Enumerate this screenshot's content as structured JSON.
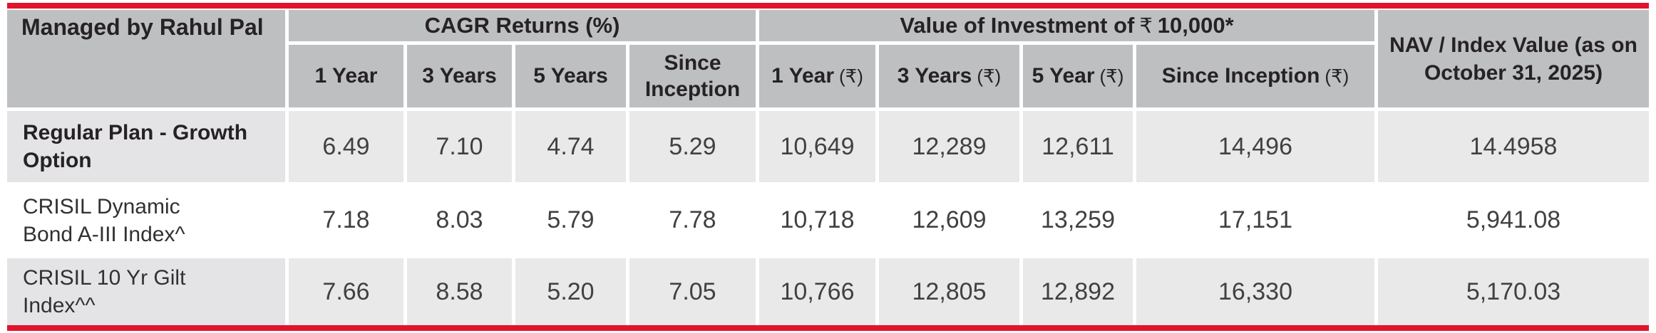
{
  "table": {
    "managed_by": "Managed by Rahul Pal",
    "groups": {
      "cagr": "CAGR Returns (%)",
      "value_pre": "Value of Investment of",
      "value_sym": "₹",
      "value_post": "10,000*",
      "nav": "NAV / Index Value (as on\nOctober 31, 2025)"
    },
    "subheaders": [
      {
        "label": "1 Year",
        "suffix": ""
      },
      {
        "label": "3 Years",
        "suffix": ""
      },
      {
        "label": "5 Years",
        "suffix": ""
      },
      {
        "label": "Since\nInception",
        "suffix": ""
      },
      {
        "label": "1 Year",
        "suffix": "(₹)"
      },
      {
        "label": "3 Years",
        "suffix": "(₹)"
      },
      {
        "label": "5 Year",
        "suffix": "(₹)"
      },
      {
        "label": "Since Inception",
        "suffix": "(₹)"
      }
    ],
    "rows": [
      {
        "label": "Regular Plan - Growth\nOption",
        "values": [
          "6.49",
          "7.10",
          "4.74",
          "5.29",
          "10,649",
          "12,289",
          "12,611",
          "14,496",
          "14.4958"
        ]
      },
      {
        "label": "CRISIL Dynamic\nBond A-III Index^",
        "values": [
          "7.18",
          "8.03",
          "5.79",
          "7.78",
          "10,718",
          "12,609",
          "13,259",
          "17,151",
          "5,941.08"
        ]
      },
      {
        "label": "CRISIL 10 Yr Gilt\nIndex^^",
        "values": [
          "7.66",
          "8.58",
          "5.20",
          "7.05",
          "10,766",
          "12,805",
          "12,892",
          "16,330",
          "5,170.03"
        ]
      }
    ],
    "colors": {
      "accent_red": "#e2132a",
      "header_gray": "#bdbfc1",
      "data_gray": "#e9e9ea",
      "label_gray": "#e4e4e6"
    }
  }
}
